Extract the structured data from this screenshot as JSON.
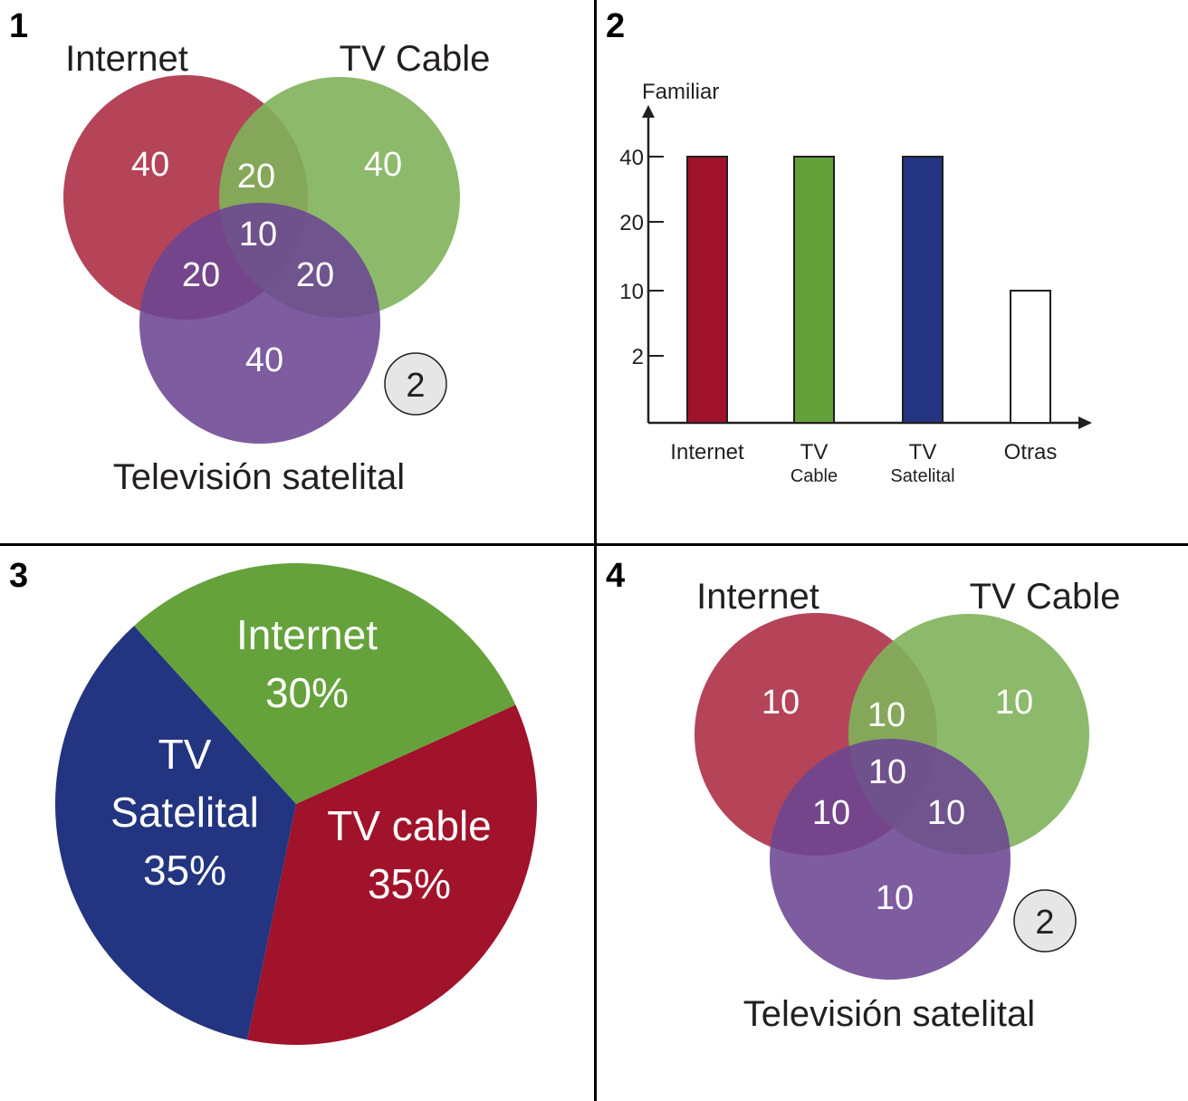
{
  "panels": [
    {
      "number": "1"
    },
    {
      "number": "2"
    },
    {
      "number": "3"
    },
    {
      "number": "4"
    }
  ],
  "chart_data": [
    {
      "type": "venn",
      "sets": [
        {
          "name": "Internet",
          "color": "#b13a50"
        },
        {
          "name": "TV Cable",
          "color": "#7fb25a"
        },
        {
          "name": "Televisión satelital",
          "color": "#6c4593"
        }
      ],
      "regions": {
        "internet_only": "40",
        "tvcable_only": "40",
        "satelital_only": "40",
        "internet_tvcable": "20",
        "internet_satelital": "20",
        "tvcable_satelital": "20",
        "all_three": "10"
      },
      "badge": "2"
    },
    {
      "type": "bar",
      "ylabel": "Familiar",
      "y_ticks": [
        "40",
        "20",
        "10",
        "2"
      ],
      "categories": [
        {
          "line1": "Internet",
          "line2": ""
        },
        {
          "line1": "TV",
          "line2": "Cable"
        },
        {
          "line1": "TV",
          "line2": "Satelital"
        },
        {
          "line1": "Otras",
          "line2": ""
        }
      ],
      "values": [
        40,
        40,
        40,
        10
      ],
      "colors": [
        "#a1122b",
        "#64a03a",
        "#233580",
        "#ffffff"
      ]
    },
    {
      "type": "pie",
      "slices": [
        {
          "label_lines": [
            "Internet",
            "30%"
          ],
          "value": 30,
          "color": "#65a23b"
        },
        {
          "label_lines": [
            "TV cable",
            "35%"
          ],
          "value": 35,
          "color": "#a1122b"
        },
        {
          "label_lines": [
            "TV",
            "Satelital",
            "35%"
          ],
          "value": 35,
          "color": "#233580"
        }
      ]
    },
    {
      "type": "venn",
      "sets": [
        {
          "name": "Internet",
          "color": "#b13a50"
        },
        {
          "name": "TV Cable",
          "color": "#7fb25a"
        },
        {
          "name": "Televisión satelital",
          "color": "#6c4593"
        }
      ],
      "regions": {
        "internet_only": "10",
        "tvcable_only": "10",
        "satelital_only": "10",
        "internet_tvcable": "10",
        "internet_satelital": "10",
        "tvcable_satelital": "10",
        "all_three": "10"
      },
      "badge": "2"
    }
  ]
}
